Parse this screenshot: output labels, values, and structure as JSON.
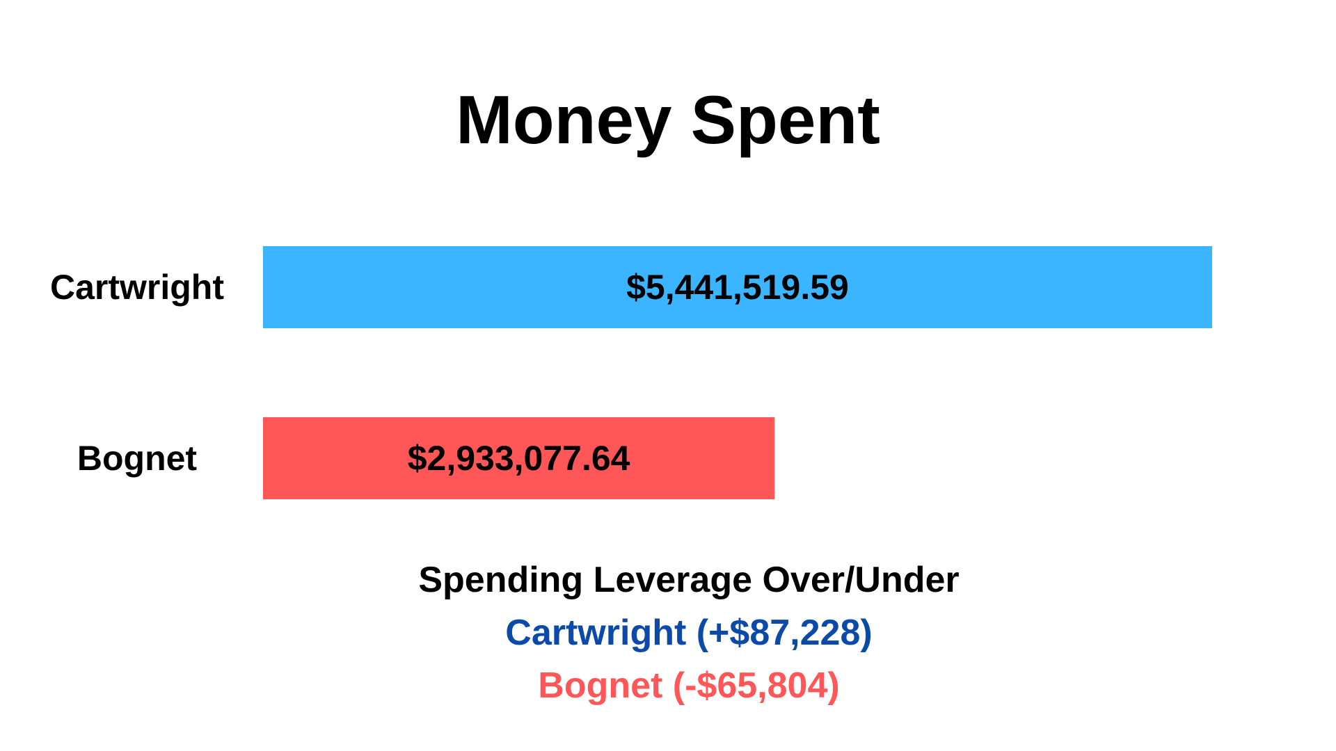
{
  "chart_data": {
    "type": "bar",
    "orientation": "horizontal",
    "title": "Money Spent",
    "categories": [
      "Cartwright",
      "Bognet"
    ],
    "values": [
      5441519.59,
      2933077.64
    ],
    "value_labels": [
      "$5,441,519.59",
      "$2,933,077.64"
    ],
    "colors": [
      "#3bb5ff",
      "#ff5757"
    ],
    "xlim": [
      0,
      5441519.59
    ],
    "grid": false,
    "legend": "none"
  },
  "summary": {
    "heading": "Spending Leverage Over/Under",
    "lines": [
      {
        "text": "Cartwright (+$87,228)",
        "color": "#0b4aa8"
      },
      {
        "text": "Bognet (-$65,804)",
        "color": "#ff5757"
      }
    ]
  }
}
